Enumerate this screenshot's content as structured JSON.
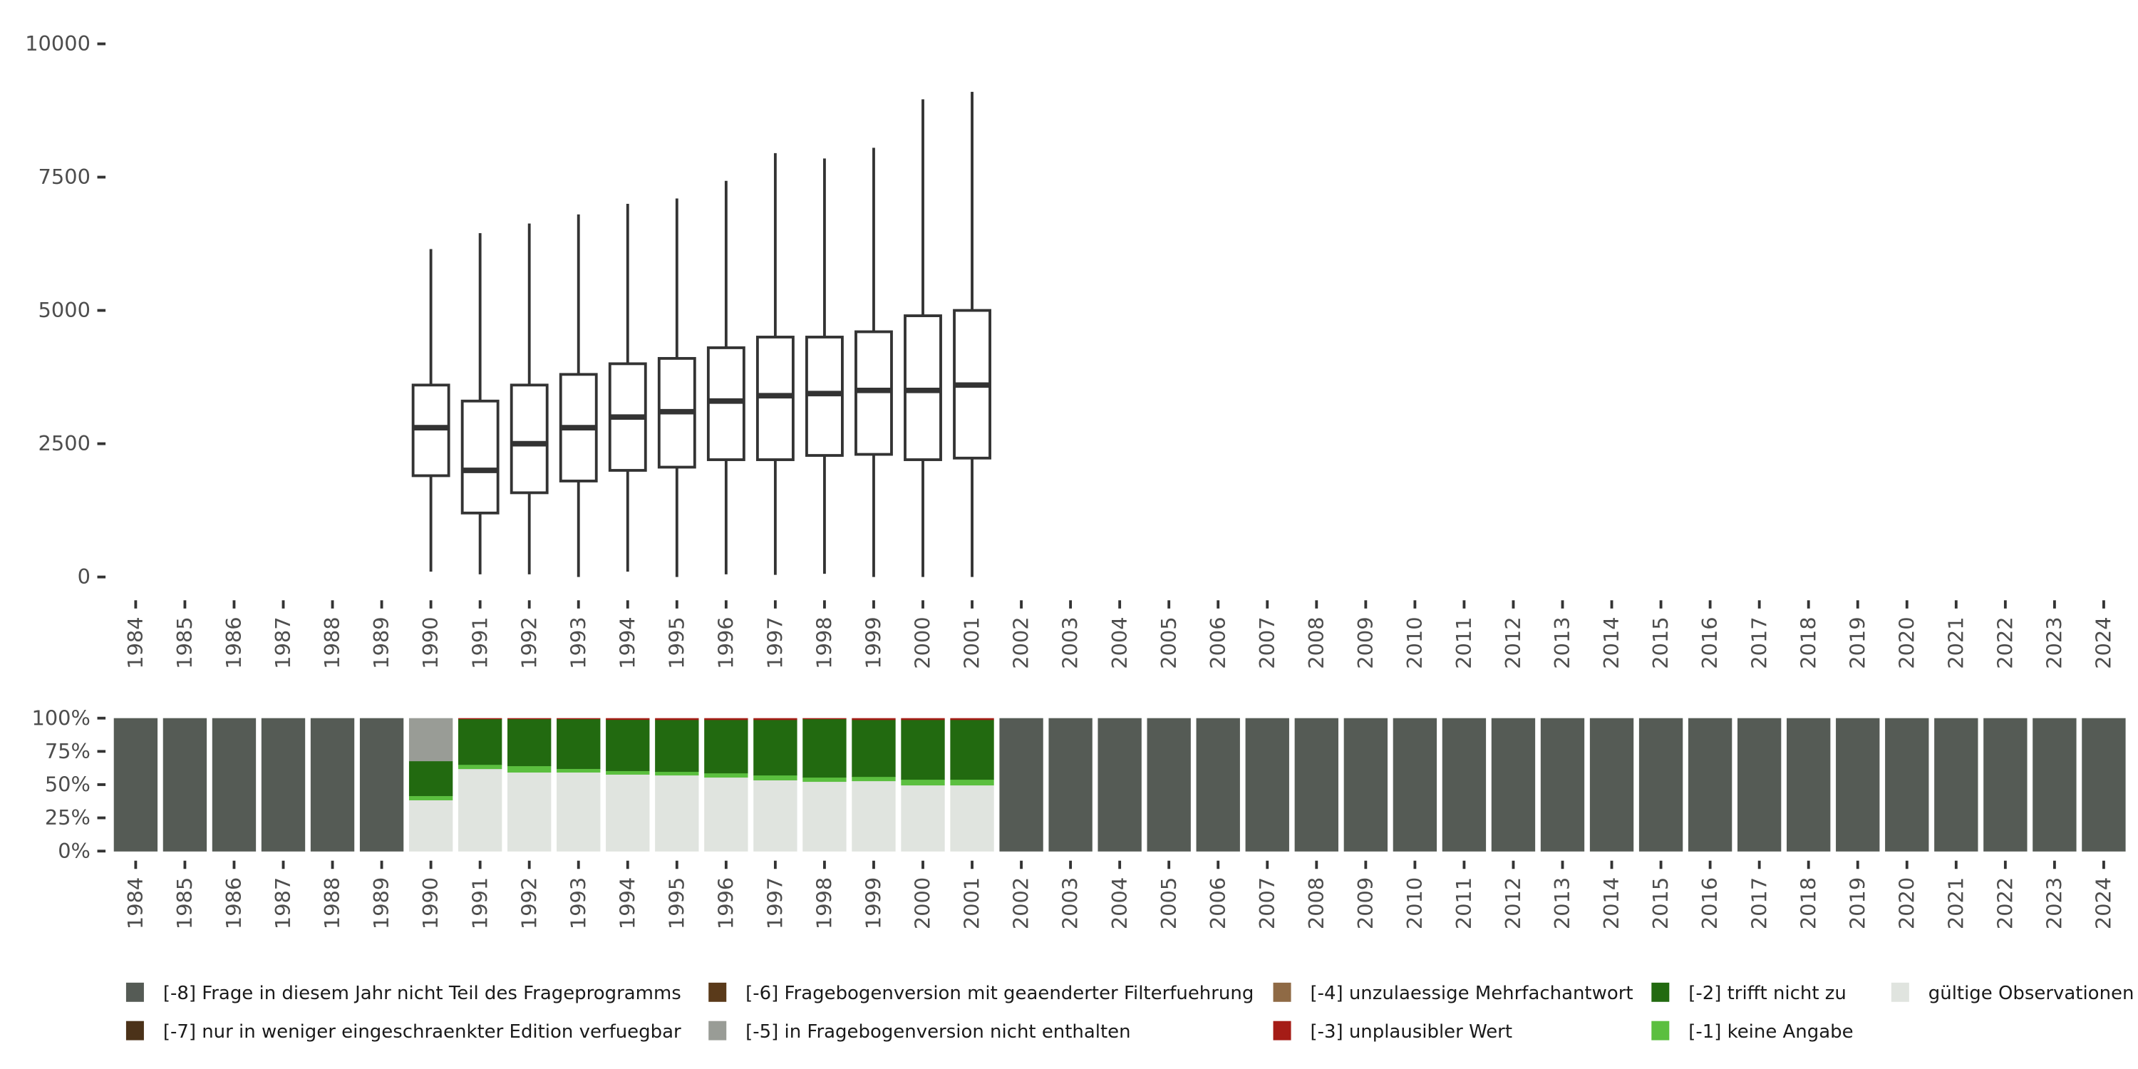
{
  "chart_data": [
    {
      "type": "boxplot",
      "title": "",
      "xlabel": "",
      "ylabel": "",
      "ylim": [
        0,
        10000
      ],
      "yticks": [
        "0",
        "2500",
        "5000",
        "7500",
        "10000"
      ],
      "ytick_values": [
        0,
        2500,
        5000,
        7500,
        10000
      ],
      "categories": [
        "1984",
        "1985",
        "1986",
        "1987",
        "1988",
        "1989",
        "1990",
        "1991",
        "1992",
        "1993",
        "1994",
        "1995",
        "1996",
        "1997",
        "1998",
        "1999",
        "2000",
        "2001",
        "2002",
        "2003",
        "2004",
        "2005",
        "2006",
        "2007",
        "2008",
        "2009",
        "2010",
        "2011",
        "2012",
        "2013",
        "2014",
        "2015",
        "2016",
        "2017",
        "2018",
        "2019",
        "2020",
        "2021",
        "2022",
        "2023",
        "2024"
      ],
      "boxes": [
        {
          "year": "1990",
          "min": 100,
          "q1": 1900,
          "median": 2800,
          "q3": 3600,
          "max": 6150
        },
        {
          "year": "1991",
          "min": 50,
          "q1": 1200,
          "median": 2000,
          "q3": 3300,
          "max": 6450
        },
        {
          "year": "1992",
          "min": 50,
          "q1": 1580,
          "median": 2500,
          "q3": 3600,
          "max": 6630
        },
        {
          "year": "1993",
          "min": 0,
          "q1": 1800,
          "median": 2800,
          "q3": 3800,
          "max": 6800
        },
        {
          "year": "1994",
          "min": 100,
          "q1": 2000,
          "median": 3000,
          "q3": 4000,
          "max": 7000
        },
        {
          "year": "1995",
          "min": 0,
          "q1": 2060,
          "median": 3100,
          "q3": 4100,
          "max": 7100
        },
        {
          "year": "1996",
          "min": 50,
          "q1": 2200,
          "median": 3300,
          "q3": 4300,
          "max": 7430
        },
        {
          "year": "1997",
          "min": 40,
          "q1": 2200,
          "median": 3400,
          "q3": 4500,
          "max": 7950
        },
        {
          "year": "1998",
          "min": 60,
          "q1": 2280,
          "median": 3440,
          "q3": 4500,
          "max": 7850
        },
        {
          "year": "1999",
          "min": 0,
          "q1": 2300,
          "median": 3500,
          "q3": 4600,
          "max": 8050
        },
        {
          "year": "2000",
          "min": 0,
          "q1": 2200,
          "median": 3500,
          "q3": 4900,
          "max": 8960
        },
        {
          "year": "2001",
          "min": 0,
          "q1": 2230,
          "median": 3600,
          "q3": 5000,
          "max": 9100
        }
      ]
    },
    {
      "type": "bar",
      "stacked": true,
      "ylim": [
        0,
        1
      ],
      "yticks": [
        "0%",
        "25%",
        "50%",
        "75%",
        "100%"
      ],
      "ytick_values": [
        0,
        0.25,
        0.5,
        0.75,
        1
      ],
      "categories": [
        "1984",
        "1985",
        "1986",
        "1987",
        "1988",
        "1989",
        "1990",
        "1991",
        "1992",
        "1993",
        "1994",
        "1995",
        "1996",
        "1997",
        "1998",
        "1999",
        "2000",
        "2001",
        "2002",
        "2003",
        "2004",
        "2005",
        "2006",
        "2007",
        "2008",
        "2009",
        "2010",
        "2011",
        "2012",
        "2013",
        "2014",
        "2015",
        "2016",
        "2017",
        "2018",
        "2019",
        "2020",
        "2021",
        "2022",
        "2023",
        "2024"
      ],
      "legend_position": "bottom",
      "series": [
        {
          "key": "valid",
          "name": "gültige Observationen",
          "color": "#e0e4df"
        },
        {
          "key": "m1",
          "name": "[-1] keine Angabe",
          "color": "#5bbf3f"
        },
        {
          "key": "m2",
          "name": "[-2] trifft nicht zu",
          "color": "#226a10"
        },
        {
          "key": "m3",
          "name": "[-3] unplausibler Wert",
          "color": "#a51c16"
        },
        {
          "key": "m4",
          "name": "[-4] unzulaessige Mehrfachantwort",
          "color": "#8f6a45"
        },
        {
          "key": "m5",
          "name": "[-5] in Fragebogenversion nicht enthalten",
          "color": "#999c96"
        },
        {
          "key": "m6",
          "name": "[-6] Fragebogenversion mit geaenderter Filterfuehrung",
          "color": "#5a3a1a"
        },
        {
          "key": "m7",
          "name": "[-7] nur in weniger eingeschraenkter Edition verfuegbar",
          "color": "#4b3219"
        },
        {
          "key": "m8",
          "name": "[-8] Frage in diesem Jahr nicht Teil des Frageprogramms",
          "color": "#555b55"
        }
      ],
      "values": {
        "1990": {
          "valid": 0.385,
          "m1": 0.032,
          "m2": 0.262,
          "m5": 0.321
        },
        "1991": {
          "valid": 0.62,
          "m1": 0.032,
          "m2": 0.343,
          "m3": 0.005
        },
        "1992": {
          "valid": 0.594,
          "m1": 0.048,
          "m2": 0.353,
          "m3": 0.005
        },
        "1993": {
          "valid": 0.594,
          "m1": 0.027,
          "m2": 0.374,
          "m3": 0.005
        },
        "1994": {
          "valid": 0.578,
          "m1": 0.027,
          "m2": 0.385,
          "m3": 0.01
        },
        "1995": {
          "valid": 0.572,
          "m1": 0.027,
          "m2": 0.39,
          "m3": 0.011
        },
        "1996": {
          "valid": 0.556,
          "m1": 0.032,
          "m2": 0.401,
          "m3": 0.011
        },
        "1997": {
          "valid": 0.535,
          "m1": 0.037,
          "m2": 0.417,
          "m3": 0.011
        },
        "1998": {
          "valid": 0.524,
          "m1": 0.032,
          "m2": 0.439,
          "m3": 0.005
        },
        "1999": {
          "valid": 0.529,
          "m1": 0.032,
          "m2": 0.428,
          "m3": 0.011
        },
        "2000": {
          "valid": 0.497,
          "m1": 0.043,
          "m2": 0.449,
          "m3": 0.011
        },
        "2001": {
          "valid": 0.497,
          "m1": 0.043,
          "m2": 0.449,
          "m3": 0.011
        },
        "default": {
          "m8": 1.0
        }
      }
    }
  ],
  "legend": {
    "rows": [
      [
        "m8",
        "m6",
        "m4",
        "m2",
        "valid"
      ],
      [
        "m7",
        "m5",
        "m3",
        "m1"
      ]
    ]
  }
}
